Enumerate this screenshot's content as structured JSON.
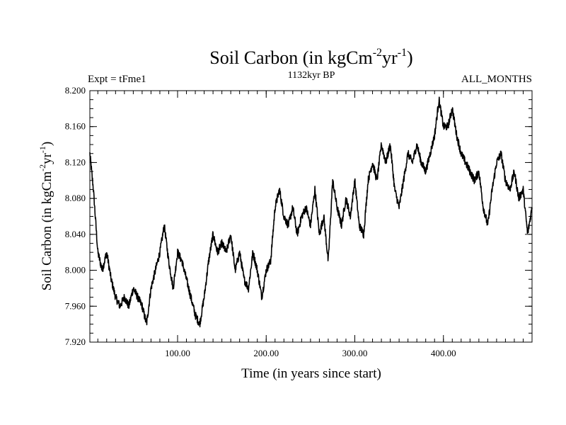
{
  "chart_data": {
    "type": "line",
    "title_main": "Soil Carbon (in kgCm",
    "title_exp1": "-2",
    "title_mid": "yr",
    "title_exp2": "-1",
    "title_close": ")",
    "subtitle_left": "Expt = tFme1",
    "subtitle_center": "1132kyr BP",
    "subtitle_right": "ALL_MONTHS",
    "xlabel": "Time (in years since start)",
    "ylabel_main": "Soil Carbon (in kgCm",
    "ylabel_exp1": "-2",
    "ylabel_mid": "yr",
    "ylabel_exp2": "-1",
    "ylabel_close": ")",
    "xlim": [
      1,
      500
    ],
    "ylim": [
      7.92,
      8.2
    ],
    "xticks": [
      100,
      200,
      300,
      400
    ],
    "xtick_labels": [
      "100.00",
      "200.00",
      "300.00",
      "400.00"
    ],
    "yticks": [
      7.92,
      7.96,
      8.0,
      8.04,
      8.08,
      8.12,
      8.16,
      8.2
    ],
    "ytick_labels": [
      "7.920",
      "7.960",
      "8.000",
      "8.040",
      "8.080",
      "8.120",
      "8.160",
      "8.200"
    ],
    "grid": false,
    "series": [
      {
        "name": "Soil Carbon",
        "color": "#000000",
        "x": [
          1,
          5,
          10,
          15,
          20,
          25,
          30,
          35,
          40,
          45,
          50,
          55,
          60,
          65,
          70,
          75,
          80,
          85,
          90,
          95,
          100,
          105,
          110,
          115,
          120,
          125,
          130,
          135,
          140,
          145,
          150,
          155,
          160,
          165,
          170,
          175,
          180,
          185,
          190,
          195,
          200,
          205,
          210,
          215,
          220,
          225,
          230,
          235,
          240,
          245,
          250,
          255,
          260,
          265,
          270,
          275,
          280,
          285,
          290,
          295,
          300,
          305,
          310,
          315,
          320,
          325,
          330,
          335,
          340,
          345,
          350,
          355,
          360,
          365,
          370,
          375,
          380,
          385,
          390,
          395,
          400,
          405,
          410,
          415,
          420,
          425,
          430,
          435,
          440,
          445,
          450,
          455,
          460,
          465,
          470,
          475,
          480,
          485,
          490,
          495,
          500
        ],
        "y": [
          8.13,
          8.09,
          8.02,
          8.0,
          8.02,
          7.99,
          7.97,
          7.96,
          7.97,
          7.96,
          7.98,
          7.97,
          7.96,
          7.94,
          7.98,
          8.0,
          8.02,
          8.05,
          8.01,
          7.98,
          8.02,
          8.01,
          7.99,
          7.97,
          7.95,
          7.94,
          7.97,
          8.01,
          8.04,
          8.02,
          8.03,
          8.02,
          8.04,
          8.0,
          8.02,
          7.99,
          7.98,
          8.02,
          8.0,
          7.97,
          8.0,
          8.01,
          8.07,
          8.09,
          8.06,
          8.05,
          8.07,
          8.04,
          8.06,
          8.07,
          8.05,
          8.09,
          8.04,
          8.06,
          8.01,
          8.1,
          8.07,
          8.05,
          8.08,
          8.06,
          8.1,
          8.05,
          8.04,
          8.1,
          8.12,
          8.1,
          8.14,
          8.12,
          8.14,
          8.09,
          8.07,
          8.1,
          8.13,
          8.12,
          8.14,
          8.12,
          8.11,
          8.13,
          8.15,
          8.19,
          8.16,
          8.16,
          8.18,
          8.15,
          8.13,
          8.12,
          8.11,
          8.1,
          8.11,
          8.07,
          8.05,
          8.09,
          8.12,
          8.13,
          8.1,
          8.09,
          8.11,
          8.08,
          8.09,
          8.04,
          8.07
        ]
      }
    ]
  }
}
